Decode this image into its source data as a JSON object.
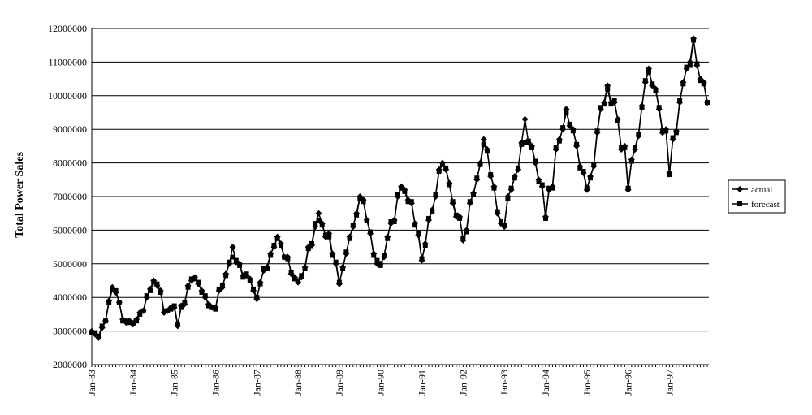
{
  "chart_data": {
    "type": "line",
    "y_label": "Total Power Sales",
    "categories": [
      "Jan-83",
      null,
      null,
      null,
      null,
      null,
      null,
      null,
      null,
      null,
      null,
      null,
      "Jan-84",
      null,
      null,
      null,
      null,
      null,
      null,
      null,
      null,
      null,
      null,
      null,
      "Jan-85",
      null,
      null,
      null,
      null,
      null,
      null,
      null,
      null,
      null,
      null,
      null,
      "Jan-86",
      null,
      null,
      null,
      null,
      null,
      null,
      null,
      null,
      null,
      null,
      null,
      "Jan-87",
      null,
      null,
      null,
      null,
      null,
      null,
      null,
      null,
      null,
      null,
      null,
      "Jan-88",
      null,
      null,
      null,
      null,
      null,
      null,
      null,
      null,
      null,
      null,
      null,
      "Jan-89",
      null,
      null,
      null,
      null,
      null,
      null,
      null,
      null,
      null,
      null,
      null,
      "Jan-90",
      null,
      null,
      null,
      null,
      null,
      null,
      null,
      null,
      null,
      null,
      null,
      "Jan-91",
      null,
      null,
      null,
      null,
      null,
      null,
      null,
      null,
      null,
      null,
      null,
      "Jan-92",
      null,
      null,
      null,
      null,
      null,
      null,
      null,
      null,
      null,
      null,
      null,
      "Jan-93",
      null,
      null,
      null,
      null,
      null,
      null,
      null,
      null,
      null,
      null,
      null,
      "Jan-94",
      null,
      null,
      null,
      null,
      null,
      null,
      null,
      null,
      null,
      null,
      null,
      "Jan-95",
      null,
      null,
      null,
      null,
      null,
      null,
      null,
      null,
      null,
      null,
      null,
      "Jan-96",
      null,
      null,
      null,
      null,
      null,
      null,
      null,
      null,
      null,
      null,
      null,
      "Jan-97",
      null,
      null,
      null,
      null,
      null,
      null,
      null,
      null,
      null,
      null,
      null
    ],
    "series": [
      {
        "name": "actual",
        "color": "#000000",
        "marker": "diamond",
        "values": [
          3000000,
          2900000,
          2800000,
          3100000,
          3300000,
          3900000,
          4300000,
          4150000,
          3850000,
          3350000,
          3250000,
          3300000,
          3200000,
          3350000,
          3550000,
          3600000,
          4000000,
          4250000,
          4500000,
          4350000,
          4200000,
          3550000,
          3600000,
          3700000,
          3700000,
          3150000,
          3750000,
          3800000,
          4350000,
          4500000,
          4600000,
          4400000,
          4200000,
          4000000,
          3800000,
          3700000,
          3700000,
          4200000,
          4300000,
          4700000,
          5000000,
          5500000,
          5050000,
          5000000,
          4650000,
          4650000,
          4550000,
          4200000,
          3950000,
          4450000,
          4800000,
          4900000,
          5300000,
          5500000,
          5800000,
          5600000,
          5200000,
          5200000,
          4700000,
          4600000,
          4450000,
          4600000,
          4900000,
          5500000,
          5550000,
          6100000,
          6500000,
          6200000,
          5800000,
          5900000,
          5300000,
          5000000,
          4400000,
          4900000,
          5300000,
          5800000,
          6100000,
          6500000,
          7000000,
          6900000,
          6300000,
          5900000,
          5300000,
          5000000,
          5000000,
          5200000,
          5800000,
          6200000,
          6300000,
          7000000,
          7300000,
          7200000,
          6900000,
          6800000,
          6200000,
          5850000,
          5100000,
          5600000,
          6300000,
          6600000,
          7000000,
          7800000,
          8000000,
          7800000,
          7400000,
          6800000,
          6400000,
          6400000,
          5700000,
          6000000,
          6800000,
          7100000,
          7500000,
          8000000,
          8700000,
          8400000,
          7600000,
          7300000,
          6500000,
          6200000,
          6100000,
          7000000,
          7200000,
          7600000,
          7800000,
          8600000,
          9300000,
          8600000,
          8500000,
          8000000,
          7500000,
          7300000,
          6400000,
          7200000,
          7300000,
          8400000,
          8700000,
          9000000,
          9600000,
          9100000,
          9000000,
          8500000,
          7900000,
          7700000,
          7200000,
          7600000,
          7900000,
          8900000,
          9600000,
          9800000,
          10300000,
          9800000,
          9800000,
          9300000,
          8400000,
          8500000,
          7200000,
          8100000,
          8400000,
          8800000,
          9700000,
          10400000,
          10800000,
          10300000,
          10200000,
          9600000,
          8900000,
          9000000,
          7700000,
          8700000,
          8950000,
          9800000,
          10400000,
          10800000,
          11000000,
          11700000,
          10900000,
          10500000,
          10400000,
          9800000
        ]
      },
      {
        "name": "forecast",
        "color": "#000000",
        "marker": "square",
        "values": [
          2950000,
          2950000,
          2850000,
          3150000,
          3300000,
          3850000,
          4250000,
          4200000,
          3850000,
          3300000,
          3300000,
          3250000,
          3250000,
          3300000,
          3500000,
          3600000,
          4050000,
          4200000,
          4450000,
          4400000,
          4150000,
          3600000,
          3600000,
          3650000,
          3750000,
          3200000,
          3700000,
          3850000,
          4300000,
          4550000,
          4550000,
          4450000,
          4150000,
          4050000,
          3750000,
          3700000,
          3650000,
          4250000,
          4350000,
          4650000,
          5050000,
          5200000,
          5100000,
          4950000,
          4600000,
          4700000,
          4500000,
          4250000,
          4000000,
          4400000,
          4850000,
          4850000,
          5250000,
          5550000,
          5750000,
          5550000,
          5200000,
          5150000,
          4750000,
          4550000,
          4500000,
          4650000,
          4850000,
          5450000,
          5600000,
          6200000,
          6300000,
          6150000,
          5850000,
          5800000,
          5250000,
          5050000,
          4450000,
          4850000,
          5350000,
          5750000,
          6150000,
          6450000,
          6950000,
          6850000,
          6300000,
          5950000,
          5250000,
          5100000,
          4950000,
          5250000,
          5750000,
          6250000,
          6250000,
          7050000,
          7250000,
          7150000,
          6850000,
          6850000,
          6150000,
          5900000,
          5150000,
          5550000,
          6350000,
          6550000,
          7050000,
          7750000,
          7950000,
          7850000,
          7350000,
          6850000,
          6450000,
          6350000,
          5750000,
          5950000,
          6850000,
          7050000,
          7550000,
          7950000,
          8550000,
          8350000,
          7650000,
          7250000,
          6550000,
          6250000,
          6150000,
          6950000,
          7250000,
          7550000,
          7850000,
          8550000,
          8600000,
          8650000,
          8450000,
          8050000,
          7450000,
          7350000,
          6350000,
          7250000,
          7250000,
          8450000,
          8650000,
          9050000,
          9500000,
          9150000,
          8950000,
          8550000,
          7850000,
          7750000,
          7250000,
          7550000,
          7950000,
          8950000,
          9650000,
          9750000,
          10200000,
          9750000,
          9850000,
          9250000,
          8450000,
          8450000,
          7250000,
          8050000,
          8450000,
          8850000,
          9650000,
          10450000,
          10700000,
          10350000,
          10150000,
          9650000,
          8950000,
          8950000,
          7650000,
          8750000,
          8900000,
          9850000,
          10350000,
          10850000,
          10900000,
          11650000,
          10950000,
          10450000,
          10350000,
          9800000
        ]
      }
    ],
    "ylim": [
      2000000,
      12000000
    ],
    "yticks": [
      2000000,
      3000000,
      4000000,
      5000000,
      6000000,
      7000000,
      8000000,
      9000000,
      10000000,
      11000000,
      12000000
    ],
    "grid": true,
    "legend": "right"
  }
}
